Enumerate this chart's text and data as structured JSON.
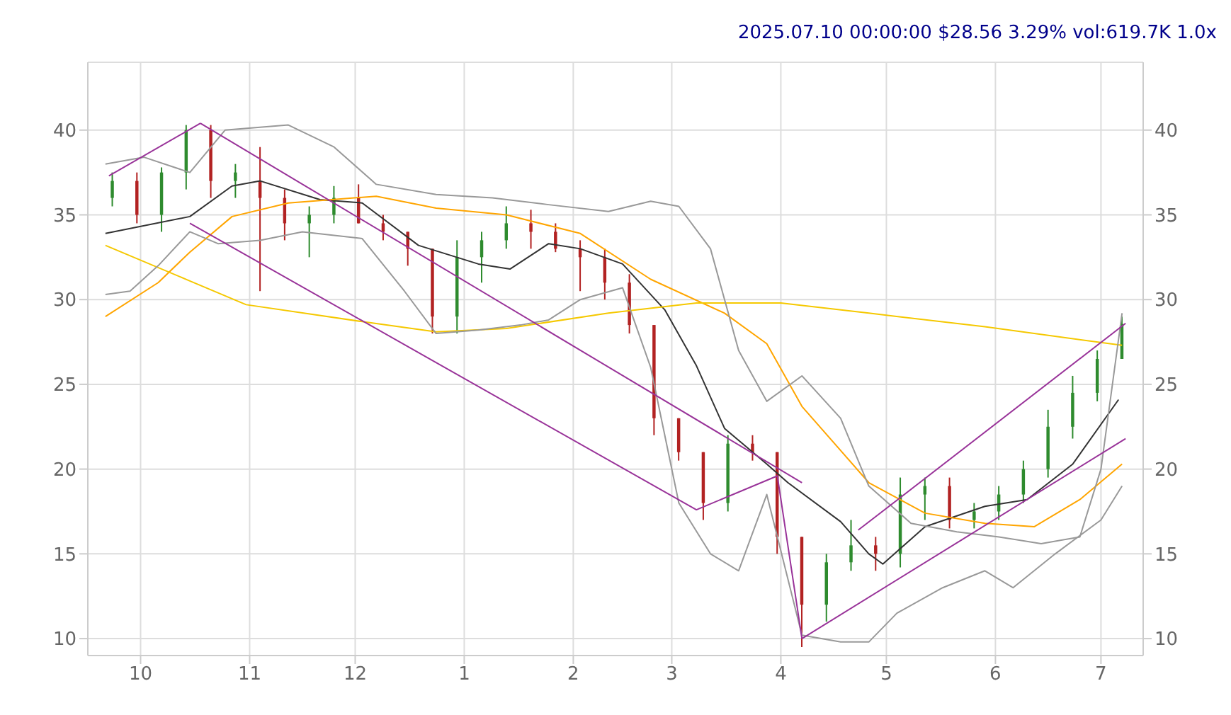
{
  "chart_data": {
    "type": "candlestick",
    "title": "2025.07.10 00:00:00 $28.56 3.29% vol:619.7K 1.0x",
    "x": [
      "2024-09-23",
      "2024-09-30",
      "2024-10-07",
      "2024-10-14",
      "2024-10-21",
      "2024-10-28",
      "2024-11-04",
      "2024-11-11",
      "2024-11-18",
      "2024-11-25",
      "2024-12-02",
      "2024-12-09",
      "2024-12-16",
      "2024-12-23",
      "2024-12-30",
      "2025-01-06",
      "2025-01-13",
      "2025-01-20",
      "2025-01-27",
      "2025-02-03",
      "2025-02-10",
      "2025-02-17",
      "2025-02-24",
      "2025-03-03",
      "2025-03-10",
      "2025-03-17",
      "2025-03-24",
      "2025-03-31",
      "2025-04-07",
      "2025-04-14",
      "2025-04-21",
      "2025-04-28",
      "2025-05-05",
      "2025-05-12",
      "2025-05-19",
      "2025-05-26",
      "2025-06-02",
      "2025-06-09",
      "2025-06-16",
      "2025-06-23",
      "2025-06-30",
      "2025-07-07"
    ],
    "ohlc": [
      [
        36,
        37.5,
        35.5,
        37
      ],
      [
        37,
        37.5,
        34.5,
        35
      ],
      [
        35,
        37.8,
        34,
        37.5
      ],
      [
        37.5,
        40.3,
        36.5,
        40
      ],
      [
        40,
        40.3,
        36,
        37
      ],
      [
        37,
        38,
        36,
        37.5
      ],
      [
        37,
        39,
        30.5,
        36
      ],
      [
        36,
        36.5,
        33.5,
        34.5
      ],
      [
        34.5,
        35.5,
        32.5,
        35
      ],
      [
        35,
        36.7,
        34.5,
        36
      ],
      [
        36,
        36.8,
        34.5,
        34.5
      ],
      [
        34.5,
        35,
        33.5,
        34
      ],
      [
        34,
        34,
        32,
        33
      ],
      [
        33,
        33,
        28,
        29
      ],
      [
        29,
        33.5,
        28,
        32.5
      ],
      [
        32.5,
        34,
        31,
        33.5
      ],
      [
        33.5,
        35.5,
        33,
        34.5
      ],
      [
        34.5,
        35.3,
        33,
        34
      ],
      [
        34,
        34.5,
        32.8,
        33
      ],
      [
        33,
        33.5,
        30.5,
        32.5
      ],
      [
        32.5,
        33,
        30,
        31
      ],
      [
        31,
        31.5,
        28,
        28.5
      ],
      [
        28.5,
        28.5,
        22,
        23
      ],
      [
        23,
        23,
        20.5,
        21
      ],
      [
        21,
        21,
        17,
        18
      ],
      [
        18,
        22,
        17.5,
        21.5
      ],
      [
        21.5,
        22,
        20.5,
        21
      ],
      [
        21,
        21,
        15,
        16
      ],
      [
        16,
        16,
        9.5,
        12
      ],
      [
        12,
        15,
        11,
        14.5
      ],
      [
        14.5,
        17,
        14,
        15.5
      ],
      [
        15.5,
        16,
        14,
        15
      ],
      [
        15,
        19.5,
        14.2,
        18.5
      ],
      [
        18.5,
        19.5,
        17,
        19
      ],
      [
        19,
        19.5,
        16.5,
        17
      ],
      [
        17,
        18,
        16.5,
        17.5
      ],
      [
        17.5,
        19,
        17,
        18.5
      ],
      [
        18.5,
        20.5,
        18,
        20
      ],
      [
        20,
        23.5,
        19.5,
        22.5
      ],
      [
        22.5,
        25.5,
        21.8,
        24.5
      ],
      [
        24.5,
        27,
        24,
        26.5
      ],
      [
        26.5,
        29,
        26.5,
        28.56
      ]
    ],
    "colors": [
      "#2e8b2e",
      "#b22222",
      "#2e8b2e",
      "#2e8b2e",
      "#b22222",
      "#2e8b2e",
      "#b22222",
      "#b22222",
      "#2e8b2e",
      "#2e8b2e",
      "#b22222",
      "#b22222",
      "#b22222",
      "#b22222",
      "#2e8b2e",
      "#2e8b2e",
      "#2e8b2e",
      "#b22222",
      "#b22222",
      "#b22222",
      "#b22222",
      "#b22222",
      "#b22222",
      "#b22222",
      "#b22222",
      "#2e8b2e",
      "#b22222",
      "#b22222",
      "#b22222",
      "#2e8b2e",
      "#2e8b2e",
      "#b22222",
      "#2e8b2e",
      "#2e8b2e",
      "#b22222",
      "#2e8b2e",
      "#2e8b2e",
      "#2e8b2e",
      "#2e8b2e",
      "#2e8b2e",
      "#2e8b2e",
      "#2e8b2e"
    ],
    "series": [
      {
        "type": "line",
        "color": "#333333",
        "x": [
          "2024-09-21",
          "2024-10-15",
          "2024-10-27",
          "2024-11-04",
          "2024-11-21",
          "2024-12-03",
          "2024-12-19",
          "2025-01-05",
          "2025-01-14",
          "2025-01-25",
          "2025-02-03",
          "2025-02-15",
          "2025-02-27",
          "2025-03-08",
          "2025-03-16",
          "2025-03-28",
          "2025-04-03",
          "2025-04-18",
          "2025-04-26",
          "2025-04-30",
          "2025-05-12",
          "2025-05-29",
          "2025-06-10",
          "2025-06-23",
          "2025-07-06"
        ],
        "values": [
          33.9,
          34.9,
          36.7,
          37,
          35.9,
          35.7,
          33.2,
          32.1,
          31.8,
          33.3,
          33,
          32.1,
          29.4,
          26.1,
          22.4,
          20.3,
          19.2,
          16.9,
          15,
          14.4,
          16.6,
          17.8,
          18.2,
          20.3,
          24.1
        ]
      },
      {
        "type": "line",
        "color": "#ffa500",
        "x": [
          "2024-09-21",
          "2024-10-06",
          "2024-10-15",
          "2024-10-27",
          "2024-11-12",
          "2024-12-07",
          "2024-12-24",
          "2025-01-13",
          "2025-02-03",
          "2025-02-23",
          "2025-03-16",
          "2025-03-28",
          "2025-04-07",
          "2025-04-18",
          "2025-04-26",
          "2025-05-12",
          "2025-05-29",
          "2025-06-12",
          "2025-06-25",
          "2025-07-07"
        ],
        "values": [
          29,
          31,
          32.8,
          34.9,
          35.7,
          36.1,
          35.4,
          35,
          33.9,
          31.2,
          29.2,
          27.4,
          23.7,
          21.1,
          19.2,
          17.4,
          16.8,
          16.6,
          18.2,
          20.3
        ]
      },
      {
        "type": "line",
        "color": "#f5c800",
        "x": [
          "2024-09-21",
          "2024-10-15",
          "2024-10-31",
          "2024-12-03",
          "2024-12-24",
          "2025-01-13",
          "2025-02-11",
          "2025-03-08",
          "2025-04-01",
          "2025-04-26",
          "2025-05-29",
          "2025-07-07"
        ],
        "values": [
          33.2,
          31.1,
          29.7,
          28.7,
          28.1,
          28.3,
          29.2,
          29.8,
          29.8,
          29.2,
          28.4,
          27.3
        ]
      },
      {
        "type": "line",
        "color": "#999999",
        "x": [
          "2024-09-21",
          "2024-10-02",
          "2024-10-15",
          "2024-10-25",
          "2024-11-12",
          "2024-11-25",
          "2024-12-07",
          "2024-12-24",
          "2025-01-09",
          "2025-01-25",
          "2025-02-11",
          "2025-02-23",
          "2025-03-03",
          "2025-03-12",
          "2025-03-20",
          "2025-03-28",
          "2025-04-07",
          "2025-04-18",
          "2025-04-26",
          "2025-05-08",
          "2025-05-21",
          "2025-06-02",
          "2025-06-14",
          "2025-06-25",
          "2025-07-01",
          "2025-07-07"
        ],
        "values": [
          38,
          38.4,
          37.5,
          40,
          40.3,
          39,
          36.8,
          36.2,
          36,
          35.6,
          35.2,
          35.8,
          35.5,
          33,
          27,
          24,
          25.5,
          23,
          19,
          16.8,
          16.3,
          16,
          15.6,
          16,
          20,
          29.2
        ]
      },
      {
        "type": "line",
        "color": "#999999",
        "x": [
          "2024-09-21",
          "2024-09-28",
          "2024-10-06",
          "2024-10-15",
          "2024-10-23",
          "2024-11-04",
          "2024-11-16",
          "2024-12-03",
          "2024-12-15",
          "2024-12-24",
          "2025-01-05",
          "2025-01-17",
          "2025-01-25",
          "2025-02-03",
          "2025-02-15",
          "2025-02-23",
          "2025-03-03",
          "2025-03-12",
          "2025-03-20",
          "2025-03-28",
          "2025-04-07",
          "2025-04-18",
          "2025-04-26",
          "2025-05-04",
          "2025-05-17",
          "2025-05-29",
          "2025-06-06",
          "2025-06-18",
          "2025-07-01",
          "2025-07-07"
        ],
        "values": [
          30.3,
          30.5,
          32,
          34,
          33.3,
          33.5,
          34,
          33.6,
          30.5,
          28,
          28.2,
          28.5,
          28.8,
          30,
          30.7,
          26,
          18,
          15,
          14,
          18.5,
          10.2,
          9.8,
          9.8,
          11.5,
          13,
          14,
          13,
          15,
          17,
          19
        ]
      },
      {
        "type": "line",
        "color": "#993399",
        "x": [
          "2024-09-22",
          "2024-10-18"
        ],
        "values": [
          37.3,
          40.4
        ]
      },
      {
        "type": "line",
        "color": "#993399",
        "x": [
          "2024-10-18",
          "2025-04-07"
        ],
        "values": [
          40.4,
          19.2
        ]
      },
      {
        "type": "line",
        "color": "#993399",
        "x": [
          "2024-10-15",
          "2025-03-08",
          "2025-03-31",
          "2025-04-07"
        ],
        "values": [
          34.5,
          17.6,
          19.6,
          10
        ]
      },
      {
        "type": "line",
        "color": "#993399",
        "x": [
          "2025-04-07",
          "2025-07-08"
        ],
        "values": [
          10,
          21.8
        ]
      },
      {
        "type": "line",
        "color": "#993399",
        "x": [
          "2025-04-23",
          "2025-07-08"
        ],
        "values": [
          16.4,
          28.6
        ]
      }
    ],
    "xlim": [
      "2024-09-16",
      "2025-07-13"
    ],
    "xticks": [
      {
        "value": "2024-10-01",
        "label": "10"
      },
      {
        "value": "2024-11-01",
        "label": "11"
      },
      {
        "value": "2024-12-01",
        "label": "12"
      },
      {
        "value": "2025-01-01",
        "label": "1"
      },
      {
        "value": "2025-02-01",
        "label": "2"
      },
      {
        "value": "2025-03-01",
        "label": "3"
      },
      {
        "value": "2025-04-01",
        "label": "4"
      },
      {
        "value": "2025-05-01",
        "label": "5"
      },
      {
        "value": "2025-06-01",
        "label": "6"
      },
      {
        "value": "2025-07-01",
        "label": "7"
      }
    ],
    "ylim": [
      9,
      44
    ],
    "yticks": [
      10,
      15,
      20,
      25,
      30,
      35,
      40
    ],
    "y2lim": [
      9,
      44
    ],
    "y2ticks": [
      10,
      15,
      20,
      25,
      30,
      35,
      40
    ],
    "grid": true
  }
}
